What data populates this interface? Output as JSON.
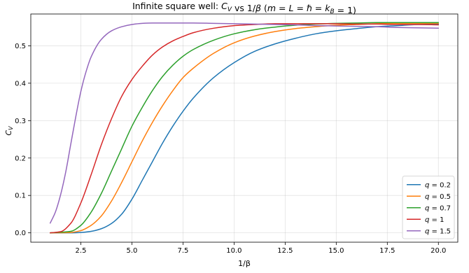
{
  "chart_data": {
    "type": "line",
    "title": "Infinite square well: C_V vs 1/β (m = L = ℏ = k_B = 1)",
    "xlabel": "1/β",
    "ylabel": "C_V",
    "xlim": [
      0.05,
      20.95
    ],
    "ylim": [
      -0.025,
      0.585
    ],
    "xticks": [
      2.5,
      5.0,
      7.5,
      10.0,
      12.5,
      15.0,
      17.5,
      20.0
    ],
    "xtick_labels": [
      "2.5",
      "5.0",
      "7.5",
      "10.0",
      "12.5",
      "15.0",
      "17.5",
      "20.0"
    ],
    "yticks": [
      0.0,
      0.1,
      0.2,
      0.3,
      0.4,
      0.5
    ],
    "ytick_labels": [
      "0.0",
      "0.1",
      "0.2",
      "0.3",
      "0.4",
      "0.5"
    ],
    "grid": true,
    "legend_position": "lower-right",
    "series": [
      {
        "name": "q = 0.2",
        "color": "#1f77b4",
        "x": [
          1,
          2,
          2.5,
          3,
          3.5,
          4,
          4.5,
          5,
          5.5,
          6,
          6.5,
          7,
          7.5,
          8,
          9,
          10,
          11,
          12,
          13,
          14,
          15,
          16,
          17,
          18,
          19,
          20
        ],
        "y": [
          0.0,
          0.0,
          0.001,
          0.004,
          0.011,
          0.025,
          0.05,
          0.09,
          0.14,
          0.19,
          0.24,
          0.285,
          0.325,
          0.36,
          0.415,
          0.455,
          0.485,
          0.505,
          0.52,
          0.532,
          0.54,
          0.546,
          0.551,
          0.554,
          0.557,
          0.558
        ]
      },
      {
        "name": "q = 0.5",
        "color": "#ff7f0e",
        "x": [
          1,
          2,
          2.5,
          3,
          3.5,
          4,
          4.5,
          5,
          5.5,
          6,
          6.5,
          7,
          7.5,
          8,
          9,
          10,
          11,
          12,
          13,
          14,
          15,
          16,
          17,
          18,
          19,
          20
        ],
        "y": [
          0.0,
          0.001,
          0.006,
          0.02,
          0.045,
          0.085,
          0.135,
          0.19,
          0.245,
          0.295,
          0.34,
          0.38,
          0.415,
          0.44,
          0.48,
          0.508,
          0.526,
          0.538,
          0.546,
          0.551,
          0.555,
          0.557,
          0.559,
          0.56,
          0.56,
          0.56
        ]
      },
      {
        "name": "q = 0.7",
        "color": "#2ca02c",
        "x": [
          1,
          2,
          2.5,
          3,
          3.5,
          4,
          4.5,
          5,
          5.5,
          6,
          6.5,
          7,
          7.5,
          8,
          9,
          10,
          11,
          12,
          13,
          14,
          15,
          16,
          17,
          18,
          19,
          20
        ],
        "y": [
          0.0,
          0.004,
          0.02,
          0.055,
          0.105,
          0.165,
          0.225,
          0.285,
          0.335,
          0.38,
          0.418,
          0.448,
          0.472,
          0.49,
          0.515,
          0.532,
          0.543,
          0.55,
          0.555,
          0.558,
          0.56,
          0.561,
          0.562,
          0.562,
          0.562,
          0.562
        ]
      },
      {
        "name": "q = 1",
        "color": "#d62728",
        "x": [
          1,
          1.5,
          2,
          2.5,
          3,
          3.5,
          4,
          4.5,
          5,
          5.5,
          6,
          6.5,
          7,
          7.5,
          8,
          9,
          10,
          11,
          12,
          13,
          14,
          15,
          16,
          17,
          18,
          19,
          20
        ],
        "y": [
          0.0,
          0.003,
          0.025,
          0.08,
          0.155,
          0.235,
          0.305,
          0.365,
          0.41,
          0.445,
          0.475,
          0.497,
          0.513,
          0.525,
          0.535,
          0.547,
          0.554,
          0.557,
          0.559,
          0.559,
          0.559,
          0.559,
          0.558,
          0.558,
          0.557,
          0.557,
          0.556
        ]
      },
      {
        "name": "q = 1.5",
        "color": "#9467bd",
        "x": [
          1,
          1.25,
          1.5,
          1.75,
          2,
          2.25,
          2.5,
          2.75,
          3,
          3.5,
          4,
          4.5,
          5,
          5.5,
          6,
          7,
          8,
          9,
          10,
          11,
          12,
          13,
          14,
          15,
          16,
          17,
          18,
          19,
          20
        ],
        "y": [
          0.026,
          0.055,
          0.1,
          0.16,
          0.235,
          0.31,
          0.378,
          0.43,
          0.47,
          0.517,
          0.54,
          0.551,
          0.557,
          0.56,
          0.561,
          0.561,
          0.561,
          0.56,
          0.559,
          0.558,
          0.557,
          0.556,
          0.554,
          0.553,
          0.552,
          0.551,
          0.549,
          0.548,
          0.547
        ]
      }
    ]
  }
}
